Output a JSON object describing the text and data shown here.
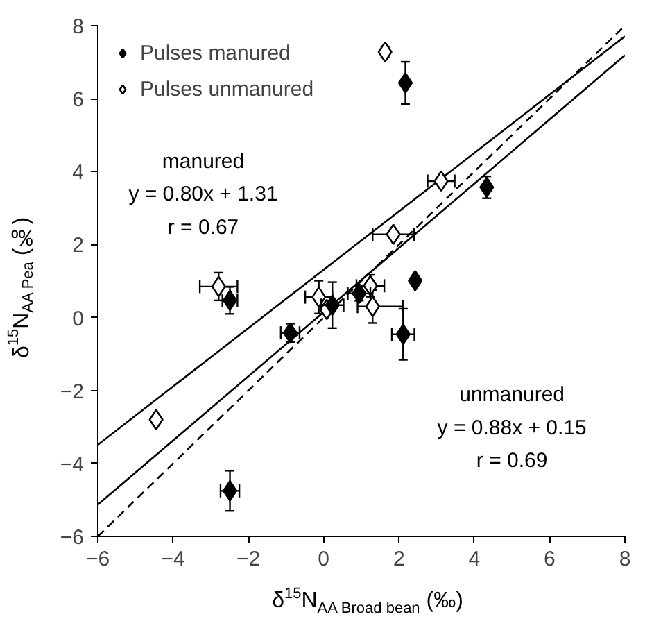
{
  "chart_data": {
    "type": "scatter",
    "xlabel": "δ$^{15}$N$_{AA Broad bean}$ (‰)",
    "ylabel": "δ$^{15}$N$_{AA Pea}$ (‰)",
    "xlim": [
      -6,
      8
    ],
    "ylim": [
      -6,
      8
    ],
    "xticks": [
      -6,
      -4,
      -2,
      0,
      2,
      4,
      6,
      8
    ],
    "yticks": [
      -6,
      -4,
      -2,
      0,
      2,
      4,
      6,
      8
    ],
    "grid": false,
    "legend": "top left",
    "series": [
      {
        "name": "Pulses manured",
        "color": "#000000",
        "marker": "diamond",
        "x": [
          2.17,
          4.33,
          2.43,
          -2.49,
          -0.89,
          0.23,
          0.94,
          2.11,
          -2.49
        ],
        "values": [
          6.43,
          3.57,
          1.01,
          0.47,
          -0.42,
          0.34,
          0.66,
          -0.46,
          -4.75
        ],
        "errors": [
          0.58,
          0.3,
          null,
          0.37,
          0.25,
          0.63,
          0.2,
          0.7,
          0.55
        ],
        "xerrors": [
          null,
          null,
          null,
          0.2,
          0.25,
          0.3,
          0.3,
          0.3,
          0.25
        ]
      },
      {
        "name": "Pulses unmanured",
        "color": "#ffffff",
        "marker": "diamond",
        "x": [
          1.63,
          3.12,
          1.85,
          -2.79,
          -0.13,
          0.08,
          1.24,
          1.3,
          -4.45
        ],
        "values": [
          7.28,
          3.74,
          2.28,
          0.85,
          0.56,
          0.22,
          0.87,
          0.3,
          -2.8
        ],
        "errors": [
          0.15,
          null,
          null,
          0.38,
          0.45,
          null,
          0.3,
          0.45,
          null
        ],
        "xerrors": [
          null,
          0.36,
          0.55,
          0.5,
          0.36,
          null,
          0.37,
          [
            0.9,
            2.1
          ],
          null
        ]
      },
      {
        "type": "line",
        "color": "#000000",
        "line_style": "solid",
        "x": [
          -6,
          8
        ],
        "values": [
          -3.49,
          7.71
        ]
      },
      {
        "type": "line",
        "color": "#000000",
        "line_style": "solid",
        "x": [
          -6,
          8
        ],
        "values": [
          -5.13,
          7.19
        ]
      },
      {
        "type": "line",
        "color": "#000000",
        "line_style": "dashed",
        "x": [
          -6,
          8
        ],
        "values": [
          -6,
          8
        ]
      }
    ],
    "annotations": [
      "manured\ny = 0.80x + 1.31\nr = 0.67",
      "unmanured\ny = 0.88x + 0.15\nr = 0.69"
    ]
  }
}
